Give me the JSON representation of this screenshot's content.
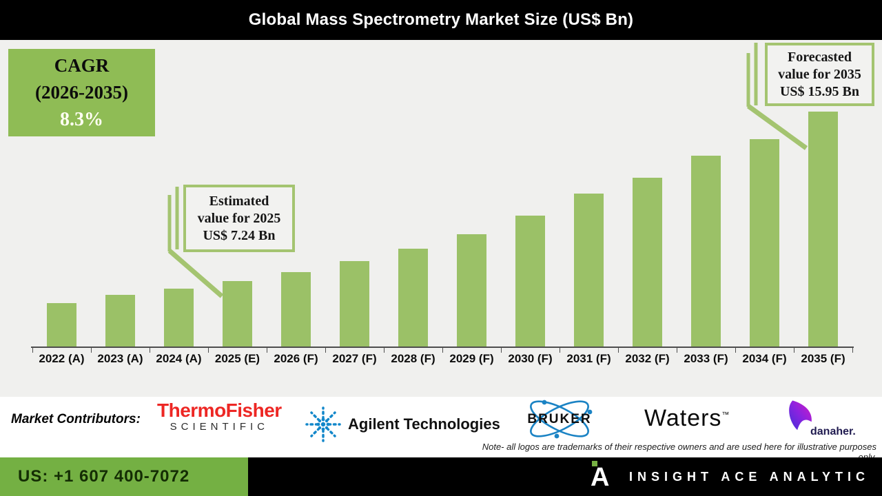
{
  "title": "Global Mass Spectrometry Market Size (US$ Bn)",
  "cagr_box": {
    "line1": "CAGR",
    "line2": "(2026-2035)",
    "value": "8.3%"
  },
  "chart_data": {
    "type": "bar",
    "title": "Global Mass Spectrometry Market Size (US$ Bn)",
    "unit": "US$ Bn",
    "categories": [
      "2022 (A)",
      "2023 (A)",
      "2024 (A)",
      "2025 (E)",
      "2026 (F)",
      "2027 (F)",
      "2028 (F)",
      "2029 (F)",
      "2030 (F)",
      "2031 (F)",
      "2032 (F)",
      "2033 (F)",
      "2034 (F)",
      "2035 (F)"
    ],
    "values": [
      6.11,
      6.53,
      6.85,
      7.24,
      7.7,
      8.26,
      8.9,
      9.67,
      10.62,
      11.72,
      12.56,
      13.66,
      14.54,
      15.95
    ],
    "labeled_values": {
      "2025 (E)": 7.24,
      "2035 (F)": 15.95
    },
    "bar_color": "#9bc167",
    "ylim": [
      3.9,
      16.5
    ],
    "grid": false,
    "legend": false,
    "callouts": {
      "estimated": {
        "lines": [
          "Estimated",
          "value for 2025",
          "US$ 7.24 Bn"
        ]
      },
      "forecasted": {
        "lines": [
          "Forecasted",
          "value for 2035",
          "US$ 15.95 Bn"
        ]
      }
    }
  },
  "contributors": {
    "label": "Market Contributors:",
    "companies": [
      "Thermo Fisher Scientific",
      "Agilent Technologies",
      "Bruker",
      "Waters",
      "Danaher"
    ]
  },
  "logos": {
    "thermo": {
      "line1": "ThermoFisher",
      "line2": "SCIENTIFIC"
    },
    "agilent": {
      "text": "Agilent Technologies"
    },
    "bruker": {
      "text": "BRUKER"
    },
    "waters": {
      "text": "Waters",
      "tm": "™"
    },
    "danaher": {
      "text": "danaher."
    }
  },
  "note": {
    "line1": "Note- all logos are trademarks of their respective owners and are used here for illustrative purposes",
    "line2": "only."
  },
  "footer": {
    "phone": "US: +1 607 400-7072",
    "logo_letter": "A",
    "brand": "INSIGHT ACE ANALYTIC"
  },
  "colors": {
    "bar_green": "#9bc167",
    "cagr_green": "#8fbc55",
    "callout_border_green": "#a4c470",
    "footer_green": "#74b043",
    "thermo_red": "#ed2724",
    "agilent_blue": "#1287ca",
    "bruker_blue": "#1b83c4",
    "background_gray": "#f0f0ee"
  }
}
